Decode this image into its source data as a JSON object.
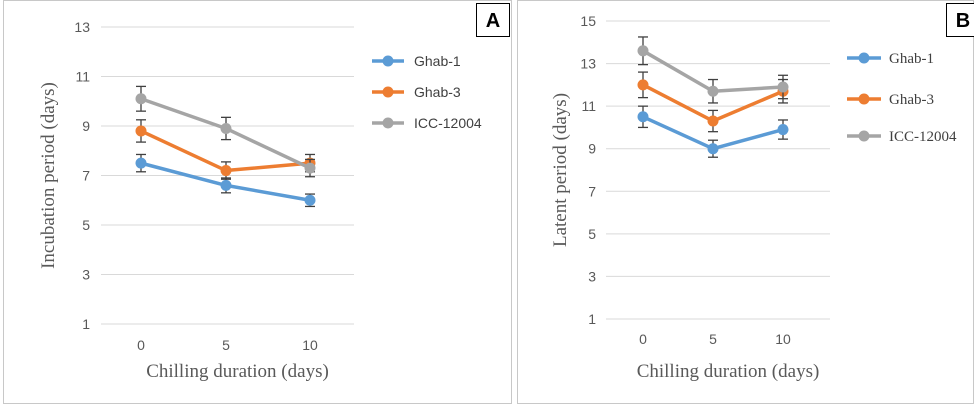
{
  "colors": {
    "Ghab-1": "#5b9bd5",
    "Ghab-3": "#ed7d31",
    "ICC-12004": "#a5a5a5",
    "grid": "#d9d9d9",
    "error": "#404040"
  },
  "chart_data": [
    {
      "panel_label": "A",
      "type": "line",
      "xlabel": "Chilling duration (days)",
      "ylabel": "Incubation period (days)",
      "x": [
        0,
        5,
        10
      ],
      "x_tick_labels": [
        "0",
        "5",
        "10"
      ],
      "ylim": [
        1,
        13
      ],
      "y_ticks": [
        1,
        3,
        5,
        7,
        9,
        11,
        13
      ],
      "grid": true,
      "legend_position": "right",
      "series": [
        {
          "name": "Ghab-1",
          "values": [
            7.5,
            6.6,
            6.0
          ],
          "errors": [
            0.35,
            0.3,
            0.25
          ]
        },
        {
          "name": "Ghab-3",
          "values": [
            8.8,
            7.2,
            7.5
          ],
          "errors": [
            0.45,
            0.35,
            0.35
          ]
        },
        {
          "name": "ICC-12004",
          "values": [
            10.1,
            8.9,
            7.3
          ],
          "errors": [
            0.5,
            0.45,
            0.35
          ]
        }
      ]
    },
    {
      "panel_label": "B",
      "type": "line",
      "xlabel": "Chilling duration (days)",
      "ylabel": "Latent period (days)",
      "x": [
        0,
        5,
        10
      ],
      "x_tick_labels": [
        "0",
        "5",
        "10"
      ],
      "ylim": [
        1,
        15
      ],
      "y_ticks": [
        1,
        3,
        5,
        7,
        9,
        11,
        13,
        15
      ],
      "grid": true,
      "legend_position": "right",
      "series": [
        {
          "name": "Ghab-1",
          "values": [
            10.5,
            9.0,
            9.9
          ],
          "errors": [
            0.5,
            0.4,
            0.45
          ]
        },
        {
          "name": "Ghab-3",
          "values": [
            12.0,
            10.3,
            11.7
          ],
          "errors": [
            0.6,
            0.5,
            0.55
          ]
        },
        {
          "name": "ICC-12004",
          "values": [
            13.6,
            11.7,
            11.9
          ],
          "errors": [
            0.65,
            0.55,
            0.55
          ]
        }
      ]
    }
  ]
}
